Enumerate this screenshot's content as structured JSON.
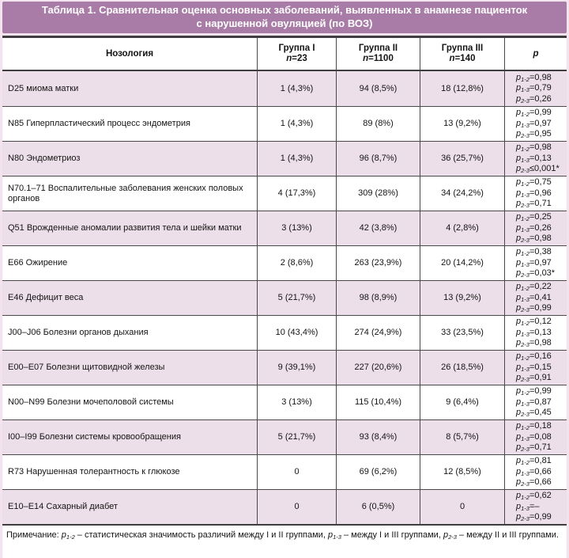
{
  "colors": {
    "title_band": "#a87ca6",
    "row_tint": "#ecdfe9",
    "frame": "#f2e3ef",
    "grid_line": "#4a484b"
  },
  "table": {
    "title_line1": "Таблица 1. Сравнительная оценка основных заболеваний, выявленных в анамнезе пациенток",
    "title_line2": "с нарушенной овуляцией (по ВОЗ)",
    "header": {
      "nosology": "Нозология",
      "groups": [
        {
          "label": "Группа I",
          "n_symbol": "n",
          "n_value": "=23"
        },
        {
          "label": "Группа II",
          "n_symbol": "n",
          "n_value": "=1100"
        },
        {
          "label": "Группа III",
          "n_symbol": "n",
          "n_value": "=140"
        }
      ],
      "p_label": "p"
    },
    "rows": [
      {
        "nosology": "D25 миома матки",
        "g1": "1 (4,3%)",
        "g2": "94 (8,5%)",
        "g3": "18 (12,8%)",
        "p": [
          {
            "sub": "1-2",
            "rel": "=",
            "val": "0,98"
          },
          {
            "sub": "1-3",
            "rel": "=",
            "val": "0,79"
          },
          {
            "sub": "2-3",
            "rel": "=",
            "val": "0,26"
          }
        ]
      },
      {
        "nosology": "N85 Гиперпластический процесс эндометрия",
        "g1": "1 (4,3%)",
        "g2": "89 (8%)",
        "g3": "13 (9,2%)",
        "p": [
          {
            "sub": "1-2",
            "rel": "=",
            "val": "0,99"
          },
          {
            "sub": "1-3",
            "rel": "=",
            "val": "0,97"
          },
          {
            "sub": "2-3",
            "rel": "=",
            "val": "0,95"
          }
        ]
      },
      {
        "nosology": "N80 Эндометриоз",
        "g1": "1 (4,3%)",
        "g2": "96 (8,7%)",
        "g3": "36 (25,7%)",
        "p": [
          {
            "sub": "1-2",
            "rel": "=",
            "val": "0,98"
          },
          {
            "sub": "1-3",
            "rel": "=",
            "val": "0,13"
          },
          {
            "sub": "2-3",
            "rel": "≤",
            "val": "0,001*"
          }
        ]
      },
      {
        "nosology": "N70.1–71 Воспалительные заболевания женских половых органов",
        "g1": "4 (17,3%)",
        "g2": "309 (28%)",
        "g3": "34 (24,2%)",
        "p": [
          {
            "sub": "1-2",
            "rel": "=",
            "val": "0,75"
          },
          {
            "sub": "1-3",
            "rel": "=",
            "val": "0,96"
          },
          {
            "sub": "2-3",
            "rel": "=",
            "val": "0,71"
          }
        ]
      },
      {
        "nosology": "Q51 Врожденные аномалии развития тела и шейки матки",
        "g1": "3 (13%)",
        "g2": "42 (3,8%)",
        "g3": "4 (2,8%)",
        "p": [
          {
            "sub": "1-2",
            "rel": "=",
            "val": "0,25"
          },
          {
            "sub": "1-3",
            "rel": "=",
            "val": "0,26"
          },
          {
            "sub": "2-3",
            "rel": "=",
            "val": "0,98"
          }
        ]
      },
      {
        "nosology": "E66 Ожирение",
        "g1": "2 (8,6%)",
        "g2": "263 (23,9%)",
        "g3": "20 (14,2%)",
        "p": [
          {
            "sub": "1-2",
            "rel": "=",
            "val": "0,38"
          },
          {
            "sub": "1-3",
            "rel": "=",
            "val": "0,97"
          },
          {
            "sub": "2-3",
            "rel": "=",
            "val": "0,03*"
          }
        ]
      },
      {
        "nosology": "E46 Дефицит веса",
        "g1": "5 (21,7%)",
        "g2": "98 (8,9%)",
        "g3": "13 (9,2%)",
        "p": [
          {
            "sub": "1-2",
            "rel": "=",
            "val": "0,22"
          },
          {
            "sub": "1-3",
            "rel": "=",
            "val": "0,41"
          },
          {
            "sub": "2-3",
            "rel": "=",
            "val": "0,99"
          }
        ]
      },
      {
        "nosology": "J00–J06 Болезни органов дыхания",
        "g1": "10 (43,4%)",
        "g2": "274 (24,9%)",
        "g3": "33 (23,5%)",
        "p": [
          {
            "sub": "1-2",
            "rel": "=",
            "val": "0,12"
          },
          {
            "sub": "1-3",
            "rel": "=",
            "val": "0,13"
          },
          {
            "sub": "2-3",
            "rel": "=",
            "val": "0,98"
          }
        ]
      },
      {
        "nosology": "E00–E07 Болезни щитовидной железы",
        "g1": "9 (39,1%)",
        "g2": "227 (20,6%)",
        "g3": "26 (18,5%)",
        "p": [
          {
            "sub": "1-2",
            "rel": "=",
            "val": "0,16"
          },
          {
            "sub": "1-3",
            "rel": "=",
            "val": "0,15"
          },
          {
            "sub": "2-3",
            "rel": "=",
            "val": "0,91"
          }
        ]
      },
      {
        "nosology": "N00–N99 Болезни мочеполовой системы",
        "g1": "3 (13%)",
        "g2": "115 (10,4%)",
        "g3": "9 (6,4%)",
        "p": [
          {
            "sub": "1-2",
            "rel": "=",
            "val": "0,99"
          },
          {
            "sub": "1-3",
            "rel": "=",
            "val": "0,87"
          },
          {
            "sub": "2-3",
            "rel": "=",
            "val": "0,45"
          }
        ]
      },
      {
        "nosology": "I00–I99 Болезни системы кровообращения",
        "g1": "5 (21,7%)",
        "g2": "93 (8,4%)",
        "g3": "8 (5,7%)",
        "p": [
          {
            "sub": "1-2",
            "rel": "=",
            "val": "0,18"
          },
          {
            "sub": "1-3",
            "rel": "=",
            "val": "0,08"
          },
          {
            "sub": "2-3",
            "rel": "=",
            "val": "0,71"
          }
        ]
      },
      {
        "nosology": "R73 Нарушенная толерантность к глюкозе",
        "g1": "0",
        "g2": "69 (6,2%)",
        "g3": "12 (8,5%)",
        "p": [
          {
            "sub": "1-2",
            "rel": "=",
            "val": "0,81"
          },
          {
            "sub": "1-3",
            "rel": "=",
            "val": "0,66"
          },
          {
            "sub": "2-3",
            "rel": "=",
            "val": "0,66"
          }
        ]
      },
      {
        "nosology": "E10–E14 Сахарный диабет",
        "g1": "0",
        "g2": "6 (0,5%)",
        "g3": "0",
        "p": [
          {
            "sub": "1-2",
            "rel": "=",
            "val": "0,62"
          },
          {
            "sub": "1-3",
            "rel": "=",
            "val": "–"
          },
          {
            "sub": "2-3",
            "rel": "=",
            "val": "0,99"
          }
        ]
      }
    ],
    "note_parts": [
      {
        "text": "Примечание: "
      },
      {
        "p": "1-2"
      },
      {
        "text": " – статистическая значимость различий между I и II группами, "
      },
      {
        "p": "1-3"
      },
      {
        "text": " – между I и III группами, "
      },
      {
        "p": "2-3"
      },
      {
        "text": " – между II и III группами."
      }
    ]
  }
}
